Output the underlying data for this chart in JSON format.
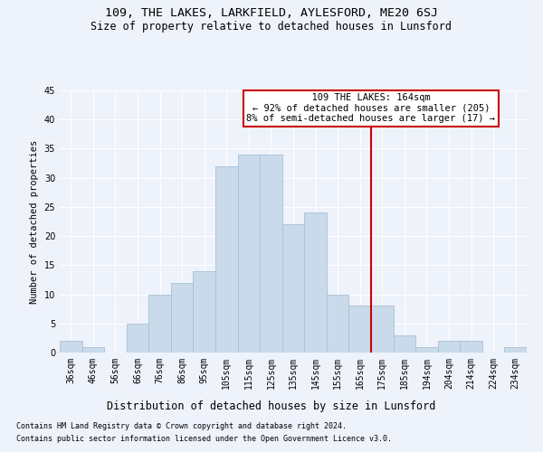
{
  "title1": "109, THE LAKES, LARKFIELD, AYLESFORD, ME20 6SJ",
  "title2": "Size of property relative to detached houses in Lunsford",
  "xlabel": "Distribution of detached houses by size in Lunsford",
  "ylabel": "Number of detached properties",
  "footer1": "Contains HM Land Registry data © Crown copyright and database right 2024.",
  "footer2": "Contains public sector information licensed under the Open Government Licence v3.0.",
  "annotation_title": "109 THE LAKES: 164sqm",
  "annotation_line1": "← 92% of detached houses are smaller (205)",
  "annotation_line2": "8% of semi-detached houses are larger (17) →",
  "bar_labels": [
    "36sqm",
    "46sqm",
    "56sqm",
    "66sqm",
    "76sqm",
    "86sqm",
    "95sqm",
    "105sqm",
    "115sqm",
    "125sqm",
    "135sqm",
    "145sqm",
    "155sqm",
    "165sqm",
    "175sqm",
    "185sqm",
    "194sqm",
    "204sqm",
    "214sqm",
    "224sqm",
    "234sqm"
  ],
  "bar_values": [
    2,
    1,
    0,
    5,
    10,
    12,
    14,
    32,
    34,
    34,
    22,
    24,
    10,
    8,
    8,
    3,
    1,
    2,
    2,
    0,
    1
  ],
  "bar_color": "#c9daea",
  "bar_edgecolor": "#a8c0d4",
  "vline_x": 13.5,
  "vline_color": "#cc0000",
  "annotation_box_color": "#cc0000",
  "bg_color": "#eef2fb",
  "grid_color": "#ffffff",
  "ylim": [
    0,
    45
  ],
  "yticks": [
    0,
    5,
    10,
    15,
    20,
    25,
    30,
    35,
    40,
    45
  ],
  "title1_fontsize": 9.5,
  "title2_fontsize": 8.5,
  "xlabel_fontsize": 8.5,
  "ylabel_fontsize": 7.5,
  "tick_fontsize": 7,
  "footer_fontsize": 6,
  "annot_fontsize": 7.5
}
